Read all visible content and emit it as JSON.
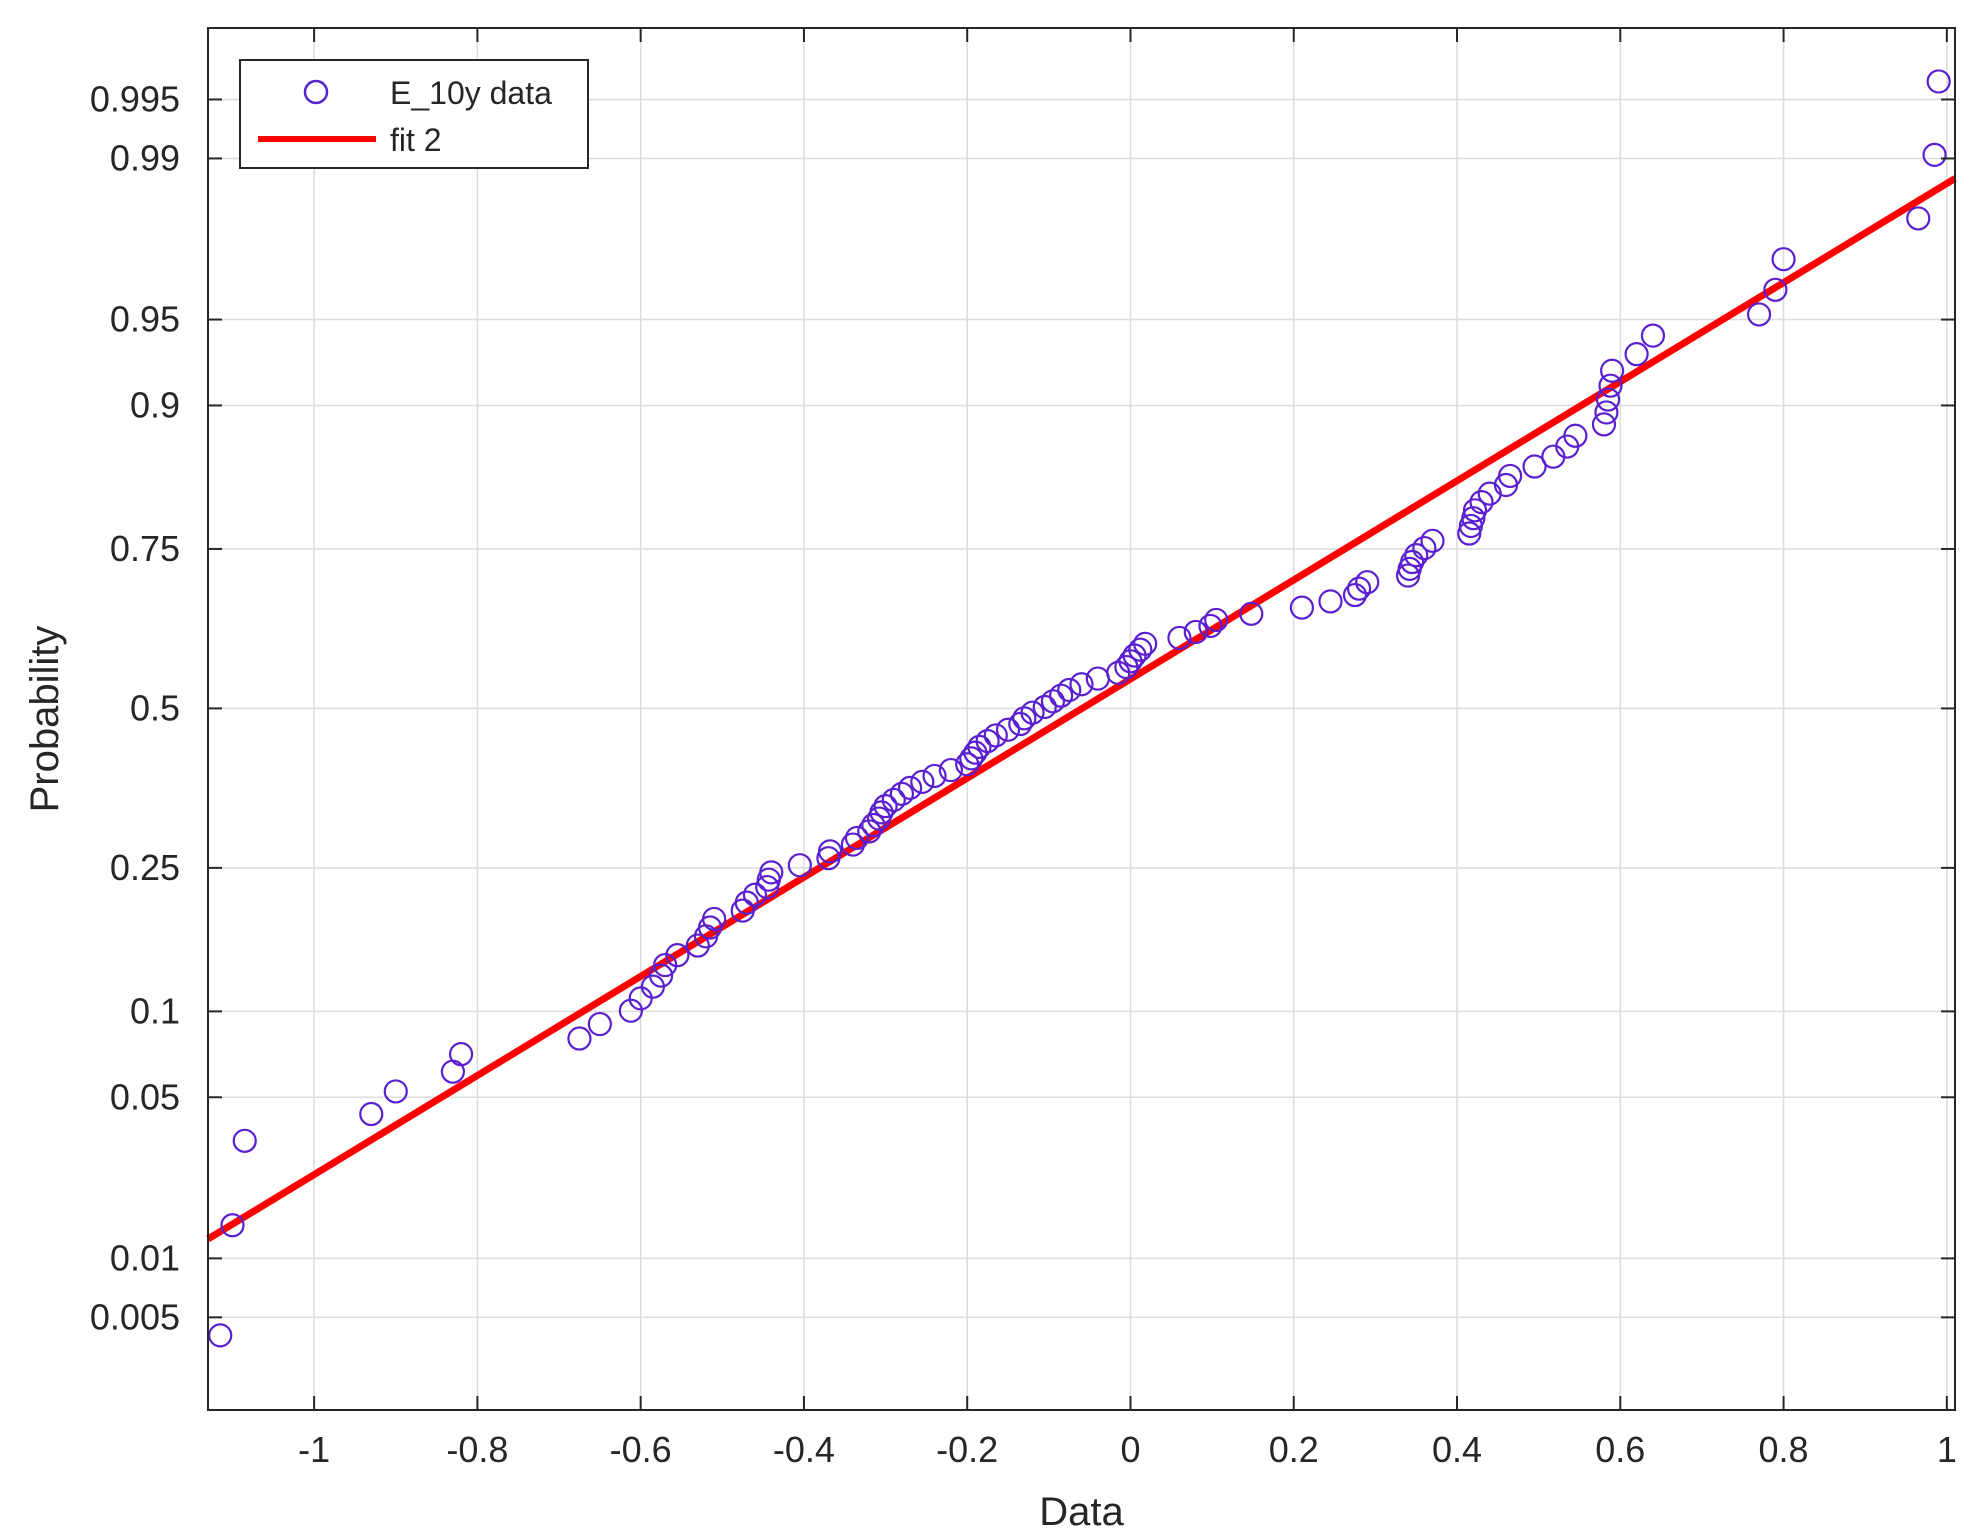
{
  "chart_data": {
    "type": "scatter",
    "xlabel": "Data",
    "ylabel": "Probability",
    "xlim": [
      -1.13,
      1.01
    ],
    "x_ticks": [
      -1,
      -0.8,
      -0.6,
      -0.4,
      -0.2,
      0,
      0.2,
      0.4,
      0.6,
      0.8,
      1
    ],
    "x_tick_labels": [
      "-1",
      "-0.8",
      "-0.6",
      "-0.4",
      "-0.2",
      "0",
      "0.2",
      "0.4",
      "0.6",
      "0.8",
      "1"
    ],
    "y_scale": "normal-probability",
    "ylim": [
      0.0015,
      0.998
    ],
    "y_ticks": [
      0.005,
      0.01,
      0.05,
      0.1,
      0.25,
      0.5,
      0.75,
      0.9,
      0.95,
      0.99,
      0.995
    ],
    "y_tick_labels": [
      "0.005",
      "0.01",
      "0.05",
      "0.1",
      "0.25",
      "0.5",
      "0.75",
      "0.9",
      "0.95",
      "0.99",
      "0.995"
    ],
    "grid": true,
    "legend_position": "top-left",
    "colors": {
      "data": "#5a1fd0",
      "fit": "#ff0000",
      "grid": "#dcdcdc",
      "axis": "#262626"
    },
    "series": [
      {
        "name": "E_10y data",
        "marker": "open-circle",
        "x": [
          -1.115,
          -1.1,
          -1.085,
          -0.93,
          -0.9,
          -0.83,
          -0.82,
          -0.675,
          -0.65,
          -0.612,
          -0.6,
          -0.585,
          -0.575,
          -0.57,
          -0.555,
          -0.53,
          -0.52,
          -0.515,
          -0.51,
          -0.475,
          -0.47,
          -0.46,
          -0.445,
          -0.443,
          -0.44,
          -0.405,
          -0.37,
          -0.368,
          -0.34,
          -0.335,
          -0.32,
          -0.315,
          -0.308,
          -0.305,
          -0.3,
          -0.29,
          -0.28,
          -0.27,
          -0.255,
          -0.24,
          -0.22,
          -0.2,
          -0.195,
          -0.19,
          -0.185,
          -0.175,
          -0.165,
          -0.15,
          -0.135,
          -0.13,
          -0.12,
          -0.105,
          -0.095,
          -0.085,
          -0.075,
          -0.06,
          -0.04,
          -0.015,
          -0.005,
          0,
          0.005,
          0.012,
          0.018,
          0.06,
          0.08,
          0.098,
          0.105,
          0.148,
          0.21,
          0.245,
          0.275,
          0.28,
          0.29,
          0.34,
          0.342,
          0.345,
          0.35,
          0.36,
          0.37,
          0.415,
          0.417,
          0.42,
          0.422,
          0.43,
          0.44,
          0.46,
          0.465,
          0.495,
          0.518,
          0.535,
          0.545,
          0.58,
          0.583,
          0.585,
          0.588,
          0.59,
          0.62,
          0.64,
          0.77,
          0.79,
          0.8,
          0.965,
          0.985,
          0.99
        ],
        "y": [
          0.004,
          0.0144,
          0.0337,
          0.0431,
          0.0526,
          0.0622,
          0.0718,
          0.0813,
          0.0909,
          0.1005,
          0.11,
          0.1196,
          0.1292,
          0.1388,
          0.1483,
          0.1579,
          0.1675,
          0.177,
          0.1866,
          0.1962,
          0.2057,
          0.2153,
          0.2249,
          0.2344,
          0.244,
          0.2536,
          0.2632,
          0.2727,
          0.2823,
          0.2919,
          0.3014,
          0.311,
          0.3206,
          0.3301,
          0.3397,
          0.3493,
          0.3589,
          0.3684,
          0.378,
          0.3876,
          0.3971,
          0.4067,
          0.4163,
          0.4258,
          0.4354,
          0.445,
          0.4545,
          0.4641,
          0.4737,
          0.4833,
          0.4928,
          0.5024,
          0.512,
          0.5215,
          0.5311,
          0.5407,
          0.5502,
          0.5598,
          0.5694,
          0.579,
          0.5885,
          0.5981,
          0.6077,
          0.6172,
          0.6268,
          0.6364,
          0.6459,
          0.6555,
          0.6651,
          0.6746,
          0.6842,
          0.6938,
          0.7033,
          0.7129,
          0.7225,
          0.7321,
          0.7416,
          0.7512,
          0.7608,
          0.7703,
          0.7799,
          0.7895,
          0.799,
          0.8086,
          0.8182,
          0.8277,
          0.8373,
          0.8469,
          0.8565,
          0.866,
          0.8756,
          0.8852,
          0.8947,
          0.9043,
          0.9139,
          0.9234,
          0.933,
          0.9426,
          0.9522,
          0.9617,
          0.9713,
          0.9809,
          0.9904,
          0.996
        ]
      },
      {
        "name": "fit 2",
        "type": "line",
        "x": [
          -1.13,
          1.01
        ],
        "y": [
          0.0124,
          0.9875
        ]
      }
    ]
  }
}
